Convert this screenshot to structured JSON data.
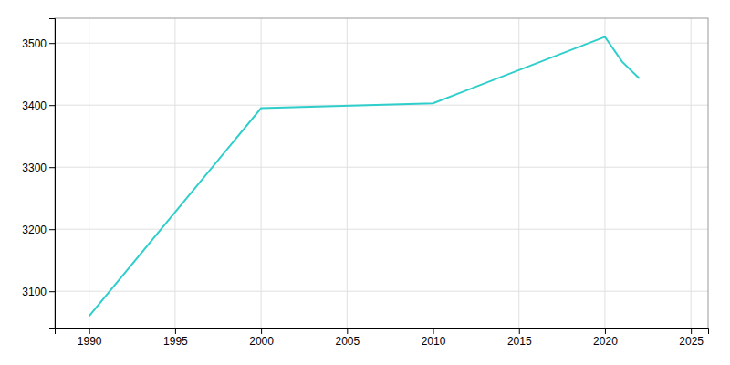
{
  "chart_data": {
    "type": "line",
    "x": [
      1990,
      2000,
      2010,
      2020,
      2021,
      2022
    ],
    "values": [
      3060,
      3395,
      3403,
      3510,
      3470,
      3443
    ],
    "color": "#2ECFCB",
    "xlim": [
      1988,
      2026
    ],
    "ylim": [
      3040,
      3540
    ],
    "xticks": [
      1990,
      1995,
      2000,
      2005,
      2010,
      2015,
      2020,
      2025
    ],
    "yticks": [
      3100,
      3200,
      3300,
      3400,
      3500
    ],
    "grid": true
  }
}
